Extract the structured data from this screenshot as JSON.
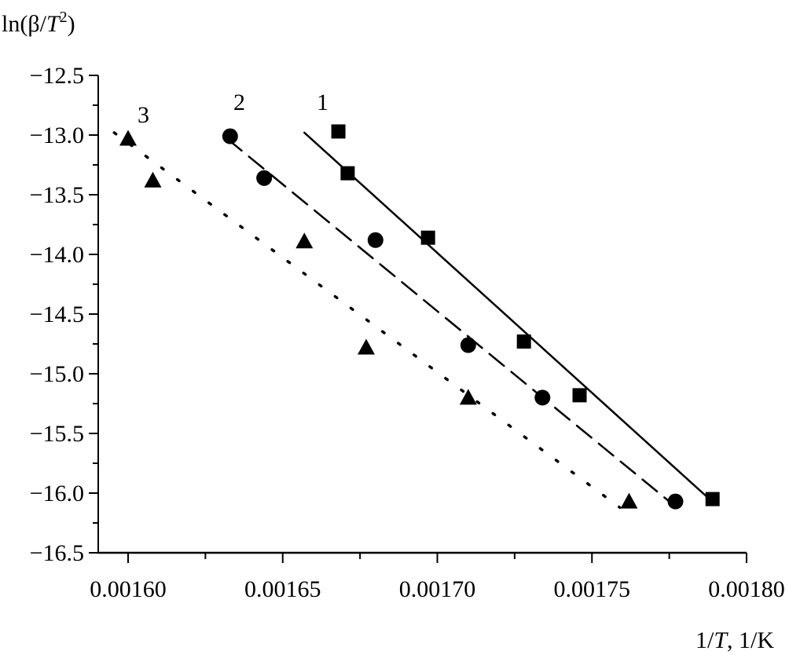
{
  "chart_data": {
    "type": "scatter",
    "title": "",
    "ylabel": "ln(β/T²)",
    "ylabel_parts": {
      "pre": "ln(β/",
      "T": "T",
      "sup": "2",
      "post": ")"
    },
    "xlabel": "1/T, 1/K",
    "xlabel_parts": {
      "pre": "1/",
      "T": "T",
      "post": ", 1/K"
    },
    "xlim": [
      0.00159,
      0.0018
    ],
    "ylim": [
      -16.5,
      -12.5
    ],
    "x_ticks": [
      0.0016,
      0.00165,
      0.0017,
      0.00175,
      0.0018
    ],
    "x_tick_labels": [
      "0.00160",
      "0.00165",
      "0.00170",
      "0.00175",
      "0.00180"
    ],
    "y_ticks": [
      -12.5,
      -13.0,
      -13.5,
      -14.0,
      -14.5,
      -15.0,
      -15.5,
      -16.0,
      -16.5
    ],
    "y_tick_labels": [
      "−12.5",
      "−13.0",
      "−13.5",
      "−14.0",
      "−14.5",
      "−15.0",
      "−15.5",
      "−16.0",
      "−16.5"
    ],
    "grid": false,
    "series": [
      {
        "name": "1",
        "marker": "square",
        "line": "solid",
        "x": [
          0.001668,
          0.001671,
          0.001697,
          0.001728,
          0.001746,
          0.001789
        ],
        "y": [
          -12.97,
          -13.32,
          -13.86,
          -14.73,
          -15.18,
          -16.05
        ],
        "fit": {
          "x": [
            0.001657,
            0.001788
          ],
          "y": [
            -12.98,
            -16.05
          ]
        }
      },
      {
        "name": "2",
        "marker": "circle",
        "line": "dashed",
        "x": [
          0.001633,
          0.001644,
          0.00168,
          0.00171,
          0.001734,
          0.001777
        ],
        "y": [
          -13.01,
          -13.36,
          -13.88,
          -14.76,
          -15.2,
          -16.07
        ],
        "fit": {
          "x": [
            0.001632,
            0.001775
          ],
          "y": [
            -13.03,
            -16.07
          ]
        }
      },
      {
        "name": "3",
        "marker": "triangle",
        "line": "dotted",
        "x": [
          0.0016,
          0.001608,
          0.001657,
          0.001677,
          0.00171,
          0.001762
        ],
        "y": [
          -13.03,
          -13.38,
          -13.89,
          -14.78,
          -15.2,
          -16.07
        ],
        "fit": {
          "x": [
            0.0015955,
            0.001759
          ],
          "y": [
            -12.98,
            -16.12
          ]
        }
      }
    ],
    "colors": {
      "ink": "#000000",
      "background": "#ffffff"
    }
  }
}
